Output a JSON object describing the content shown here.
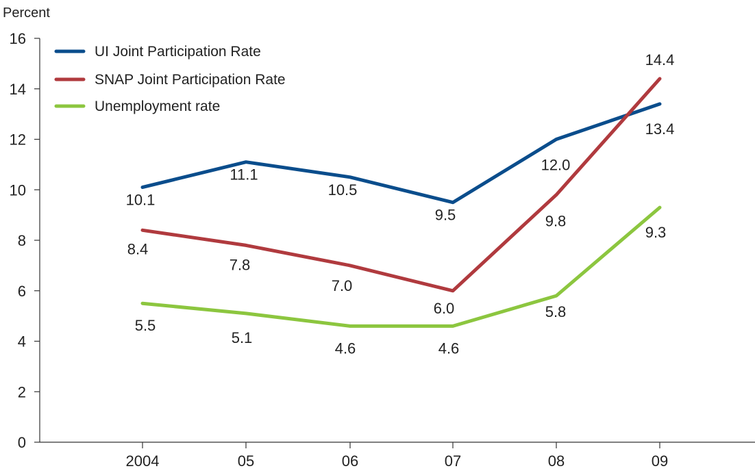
{
  "chart_data": {
    "type": "line",
    "title": "",
    "ylabel": "Percent",
    "xlabel": "",
    "categories": [
      "2004",
      "05",
      "06",
      "07",
      "08",
      "09"
    ],
    "ylim": [
      0,
      16
    ],
    "yticks": [
      0,
      2,
      4,
      6,
      8,
      10,
      12,
      14,
      16
    ],
    "grid": false,
    "legend_position": "top-left",
    "series": [
      {
        "name": "UI Joint Participation Rate",
        "color": "#0a4d8c",
        "values": [
          10.1,
          11.1,
          10.5,
          9.5,
          12.0,
          13.4
        ],
        "labels": [
          "10.1",
          "11.1",
          "10.5",
          "9.5",
          "12.0",
          "13.4"
        ]
      },
      {
        "name": "SNAP Joint Participation Rate",
        "color": "#b03a3e",
        "values": [
          8.4,
          7.8,
          7.0,
          6.0,
          9.8,
          14.4
        ],
        "labels": [
          "8.4",
          "7.8",
          "7.0",
          "6.0",
          "9.8",
          "14.4"
        ]
      },
      {
        "name": "Unemployment rate",
        "color": "#8cc63f",
        "values": [
          5.5,
          5.1,
          4.6,
          4.6,
          5.8,
          9.3
        ],
        "labels": [
          "5.5",
          "5.1",
          "4.6",
          "4.6",
          "5.8",
          "9.3"
        ]
      }
    ]
  }
}
